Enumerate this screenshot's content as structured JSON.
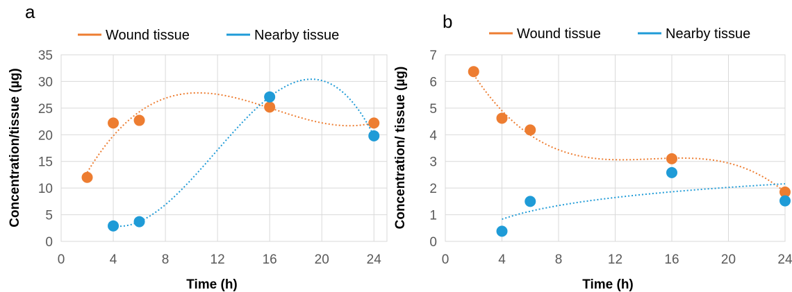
{
  "chart_data": [
    {
      "type": "scatter",
      "panel_label": "a",
      "xlabel": "Time (h)",
      "ylabel": "Concentration/tissue (µg)",
      "xlim": [
        0,
        25
      ],
      "ylim": [
        0,
        35
      ],
      "xticks": [
        0,
        4,
        8,
        12,
        16,
        20,
        24
      ],
      "yticks": [
        0,
        5,
        10,
        15,
        20,
        25,
        30,
        35
      ],
      "grid": true,
      "legend_position": "top",
      "series": [
        {
          "name": "Wound tissue",
          "color": "#ED7D31",
          "x": [
            2,
            4,
            6,
            16,
            24
          ],
          "y": [
            12.0,
            22.2,
            22.7,
            25.2,
            22.2
          ],
          "trendline": "polynomial"
        },
        {
          "name": "Nearby tissue",
          "color": "#1F9BD7",
          "x": [
            4,
            6,
            16,
            24
          ],
          "y": [
            2.9,
            3.7,
            27.1,
            19.8
          ],
          "trendline": "polynomial"
        }
      ]
    },
    {
      "type": "scatter",
      "panel_label": "b",
      "xlabel": "Time (h)",
      "ylabel": "Concentration/ tissue (µg)",
      "xlim": [
        0,
        24
      ],
      "ylim": [
        0,
        7
      ],
      "xticks": [
        0,
        4,
        8,
        12,
        16,
        20,
        24
      ],
      "yticks": [
        0,
        1,
        2,
        3,
        4,
        5,
        6,
        7
      ],
      "grid": true,
      "legend_position": "top",
      "series": [
        {
          "name": "Wound tissue",
          "color": "#ED7D31",
          "x": [
            2,
            4,
            6,
            16,
            24
          ],
          "y": [
            6.37,
            4.62,
            4.18,
            3.1,
            1.85
          ],
          "trendline": "polynomial"
        },
        {
          "name": "Nearby tissue",
          "color": "#1F9BD7",
          "x": [
            4,
            6,
            16,
            24
          ],
          "y": [
            0.38,
            1.5,
            2.58,
            1.52
          ],
          "trendline": "logarithmic"
        }
      ]
    }
  ]
}
